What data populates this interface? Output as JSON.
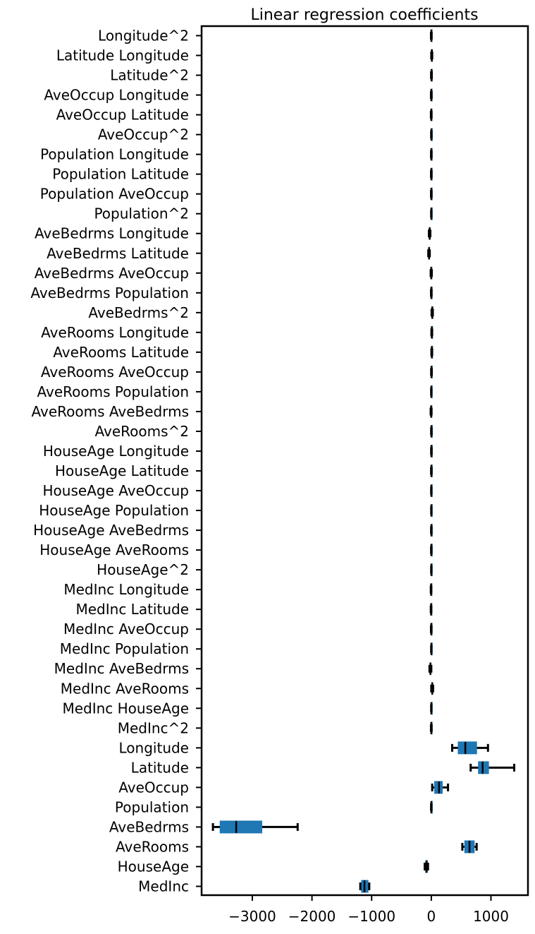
{
  "chart_data": {
    "type": "boxplot",
    "orientation": "horizontal",
    "title": "Linear regression coefficients",
    "xlabel": "",
    "ylabel": "",
    "xlim": [
      -3850,
      1620
    ],
    "xticks": [
      -3000,
      -2000,
      -1000,
      0,
      1000
    ],
    "xtick_labels": [
      "−3000",
      "−2000",
      "−1000",
      "0",
      "1000"
    ],
    "box_color": "#1f77b4",
    "grid": false,
    "categories": [
      "Longitude^2",
      "Latitude Longitude",
      "Latitude^2",
      "AveOccup Longitude",
      "AveOccup Latitude",
      "AveOccup^2",
      "Population Longitude",
      "Population Latitude",
      "Population AveOccup",
      "Population^2",
      "AveBedrms Longitude",
      "AveBedrms Latitude",
      "AveBedrms AveOccup",
      "AveBedrms Population",
      "AveBedrms^2",
      "AveRooms Longitude",
      "AveRooms Latitude",
      "AveRooms AveOccup",
      "AveRooms Population",
      "AveRooms AveBedrms",
      "AveRooms^2",
      "HouseAge Longitude",
      "HouseAge Latitude",
      "HouseAge AveOccup",
      "HouseAge Population",
      "HouseAge AveBedrms",
      "HouseAge AveRooms",
      "HouseAge^2",
      "MedInc Longitude",
      "MedInc Latitude",
      "MedInc AveOccup",
      "MedInc Population",
      "MedInc AveBedrms",
      "MedInc AveRooms",
      "MedInc HouseAge",
      "MedInc^2",
      "Longitude",
      "Latitude",
      "AveOccup",
      "Population",
      "AveBedrms",
      "AveRooms",
      "HouseAge",
      "MedInc"
    ],
    "boxes": [
      {
        "whislo": -5,
        "q1": -3,
        "med": 0,
        "q3": 3,
        "whishi": 5
      },
      {
        "whislo": 0,
        "q1": 3,
        "med": 8,
        "q3": 12,
        "whishi": 15
      },
      {
        "whislo": -3,
        "q1": 0,
        "med": 3,
        "q3": 6,
        "whishi": 8
      },
      {
        "whislo": -5,
        "q1": -3,
        "med": 0,
        "q3": 3,
        "whishi": 5
      },
      {
        "whislo": -6,
        "q1": -4,
        "med": -1,
        "q3": 2,
        "whishi": 4
      },
      {
        "whislo": -2,
        "q1": 0,
        "med": 1,
        "q3": 2,
        "whishi": 4
      },
      {
        "whislo": -4,
        "q1": -2,
        "med": 0,
        "q3": 2,
        "whishi": 4
      },
      {
        "whislo": -4,
        "q1": -2,
        "med": 0,
        "q3": 2,
        "whishi": 4
      },
      {
        "whislo": -4,
        "q1": -2,
        "med": 0,
        "q3": 2,
        "whishi": 4
      },
      {
        "whislo": -2,
        "q1": -1,
        "med": 0,
        "q3": 1,
        "whishi": 2
      },
      {
        "whislo": -40,
        "q1": -34,
        "med": -28,
        "q3": -22,
        "whishi": -16
      },
      {
        "whislo": -50,
        "q1": -44,
        "med": -38,
        "q3": -32,
        "whishi": -26
      },
      {
        "whislo": -10,
        "q1": -6,
        "med": -2,
        "q3": 3,
        "whishi": 8
      },
      {
        "whislo": -4,
        "q1": -2,
        "med": 0,
        "q3": 2,
        "whishi": 4
      },
      {
        "whislo": 5,
        "q1": 10,
        "med": 15,
        "q3": 20,
        "whishi": 25
      },
      {
        "whislo": 2,
        "q1": 5,
        "med": 8,
        "q3": 11,
        "whishi": 14
      },
      {
        "whislo": 2,
        "q1": 5,
        "med": 8,
        "q3": 11,
        "whishi": 14
      },
      {
        "whislo": -2,
        "q1": 0,
        "med": 2,
        "q3": 5,
        "whishi": 8
      },
      {
        "whislo": -2,
        "q1": -1,
        "med": 0,
        "q3": 1,
        "whishi": 2
      },
      {
        "whislo": -10,
        "q1": -6,
        "med": -3,
        "q3": 0,
        "whishi": 4
      },
      {
        "whislo": -2,
        "q1": 0,
        "med": 1,
        "q3": 3,
        "whishi": 5
      },
      {
        "whislo": -2,
        "q1": 0,
        "med": 1,
        "q3": 3,
        "whishi": 5
      },
      {
        "whislo": -3,
        "q1": -1,
        "med": 1,
        "q3": 3,
        "whishi": 5
      },
      {
        "whislo": -2,
        "q1": -1,
        "med": 0,
        "q3": 1,
        "whishi": 2
      },
      {
        "whislo": -1,
        "q1": 0,
        "med": 0,
        "q3": 0,
        "whishi": 1
      },
      {
        "whislo": -3,
        "q1": -1,
        "med": 1,
        "q3": 3,
        "whishi": 4
      },
      {
        "whislo": -3,
        "q1": -1,
        "med": 0,
        "q3": 2,
        "whishi": 3
      },
      {
        "whislo": -2,
        "q1": -1,
        "med": 0,
        "q3": 1,
        "whishi": 2
      },
      {
        "whislo": -8,
        "q1": -6,
        "med": -4,
        "q3": -2,
        "whishi": 0
      },
      {
        "whislo": -8,
        "q1": -6,
        "med": -4,
        "q3": -2,
        "whishi": 0
      },
      {
        "whislo": -5,
        "q1": -3,
        "med": -1,
        "q3": 1,
        "whishi": 3
      },
      {
        "whislo": -2,
        "q1": -1,
        "med": 0,
        "q3": 1,
        "whishi": 2
      },
      {
        "whislo": -30,
        "q1": -22,
        "med": -15,
        "q3": -8,
        "whishi": 0
      },
      {
        "whislo": 0,
        "q1": 8,
        "med": 15,
        "q3": 22,
        "whishi": 30
      },
      {
        "whislo": -2,
        "q1": -1,
        "med": 0,
        "q3": 1,
        "whishi": 2
      },
      {
        "whislo": -5,
        "q1": -3,
        "med": 0,
        "q3": 3,
        "whishi": 5
      },
      {
        "whislo": 350,
        "q1": 450,
        "med": 570,
        "q3": 760,
        "whishi": 950
      },
      {
        "whislo": 660,
        "q1": 790,
        "med": 860,
        "q3": 960,
        "whishi": 1390
      },
      {
        "whislo": 15,
        "q1": 55,
        "med": 130,
        "q3": 185,
        "whishi": 280
      },
      {
        "whislo": -3,
        "q1": -1,
        "med": 0,
        "q3": 1,
        "whishi": 3
      },
      {
        "whislo": -3660,
        "q1": -3540,
        "med": -3270,
        "q3": -2840,
        "whishi": -2240
      },
      {
        "whislo": 520,
        "q1": 560,
        "med": 640,
        "q3": 720,
        "whishi": 760
      },
      {
        "whislo": -110,
        "q1": -95,
        "med": -80,
        "q3": -65,
        "whishi": -55
      },
      {
        "whislo": -1190,
        "q1": -1170,
        "med": -1120,
        "q3": -1060,
        "whishi": -1040
      }
    ]
  }
}
